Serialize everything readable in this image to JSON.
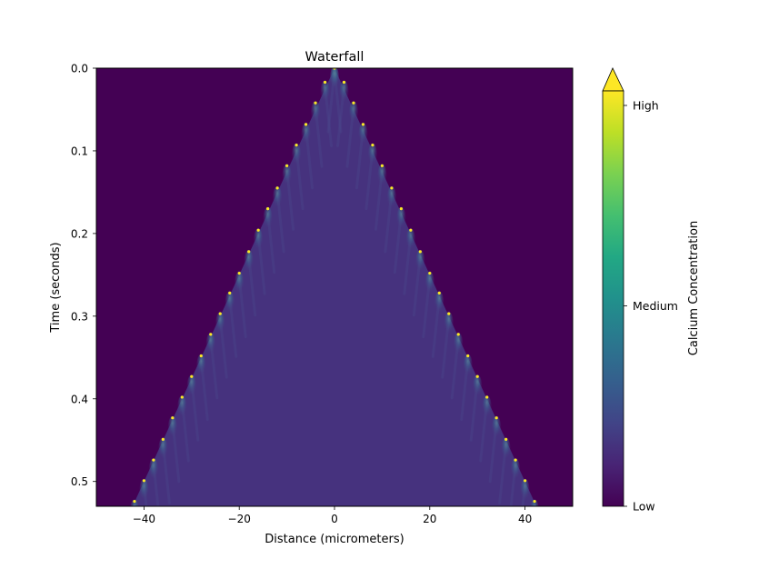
{
  "chart_data": {
    "type": "heatmap",
    "title": "Waterfall",
    "xlabel": "Distance (micrometers)",
    "ylabel": "Time (seconds)",
    "xlim": [
      -50,
      50
    ],
    "ylim": [
      0.0,
      0.53
    ],
    "y_inverted": true,
    "grid": false,
    "x_ticks": [
      -40,
      -20,
      0,
      20,
      40
    ],
    "x_tick_labels": [
      "−40",
      "−20",
      "0",
      "20",
      "40"
    ],
    "y_ticks": [
      0.0,
      0.1,
      0.2,
      0.3,
      0.4,
      0.5
    ],
    "y_tick_labels": [
      "0.0",
      "0.1",
      "0.2",
      "0.3",
      "0.4",
      "0.5"
    ],
    "colormap": "viridis",
    "wave_front": {
      "origin_x": 0,
      "speed_um_per_s": 80,
      "spark_spacing_um": 2,
      "spark_times_left": [
        0.0,
        0.017,
        0.042,
        0.068,
        0.093,
        0.118,
        0.145,
        0.17,
        0.196,
        0.222,
        0.248,
        0.272,
        0.297,
        0.322,
        0.348,
        0.373,
        0.398,
        0.423,
        0.449,
        0.474,
        0.499,
        0.524
      ],
      "spark_times_right": [
        0.0,
        0.017,
        0.042,
        0.068,
        0.093,
        0.118,
        0.145,
        0.17,
        0.196,
        0.222,
        0.248,
        0.272,
        0.297,
        0.322,
        0.348,
        0.373,
        0.398,
        0.423,
        0.449,
        0.474,
        0.499,
        0.524
      ],
      "spark_x_left": [
        0,
        -2,
        -4,
        -6,
        -8,
        -10,
        -12,
        -14,
        -16,
        -18,
        -20,
        -22,
        -24,
        -26,
        -28,
        -30,
        -32,
        -34,
        -36,
        -38,
        -40,
        -42
      ],
      "spark_x_right": [
        0,
        2,
        4,
        6,
        8,
        10,
        12,
        14,
        16,
        18,
        20,
        22,
        24,
        26,
        28,
        30,
        32,
        34,
        36,
        38,
        40,
        42
      ]
    },
    "colorbar": {
      "label": "Calcium Concentration",
      "ticks": [
        "Low",
        "Medium",
        "High"
      ],
      "tick_values": [
        0.0,
        0.5,
        1.0
      ],
      "extend": "max",
      "colors": [
        "#440154",
        "#482475",
        "#414487",
        "#355f8d",
        "#2a788e",
        "#21918c",
        "#22a884",
        "#44bf70",
        "#7ad151",
        "#bddf26",
        "#fde725"
      ]
    }
  }
}
